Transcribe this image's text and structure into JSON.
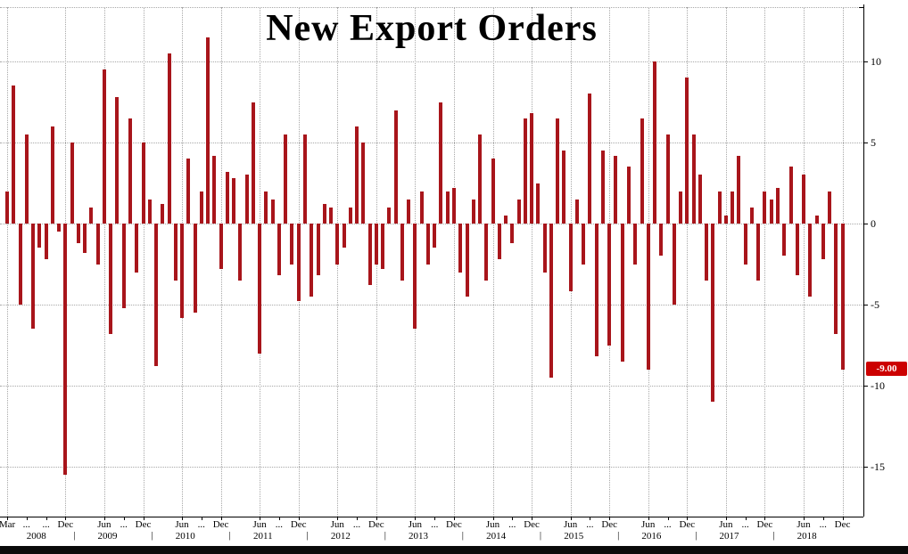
{
  "colors": {
    "bar": "#a8151b",
    "grid": "#a8a8a8",
    "axis": "#000000",
    "badge_bg": "#cc0000",
    "badge_text": "#ffffff",
    "background": "#ffffff",
    "bottom_strip": "#0a0a0a"
  },
  "chart_data": {
    "type": "bar",
    "title": "New Export Orders",
    "xlabel": "",
    "ylabel": "",
    "frequency": "monthly",
    "x_start": "2008-03",
    "x_end": "2018-12",
    "ylim": [
      -17,
      13
    ],
    "yticks": [
      10,
      5,
      0,
      -5,
      -10,
      -15
    ],
    "grid": "dotted",
    "legend": "none",
    "last_value_label": "-9.00",
    "last_value": -9.0,
    "categories": [
      "2008-03",
      "2008-04",
      "2008-05",
      "2008-06",
      "2008-07",
      "2008-08",
      "2008-09",
      "2008-10",
      "2008-11",
      "2008-12",
      "2009-01",
      "2009-02",
      "2009-03",
      "2009-04",
      "2009-05",
      "2009-06",
      "2009-07",
      "2009-08",
      "2009-09",
      "2009-10",
      "2009-11",
      "2009-12",
      "2010-01",
      "2010-02",
      "2010-03",
      "2010-04",
      "2010-05",
      "2010-06",
      "2010-07",
      "2010-08",
      "2010-09",
      "2010-10",
      "2010-11",
      "2010-12",
      "2011-01",
      "2011-02",
      "2011-03",
      "2011-04",
      "2011-05",
      "2011-06",
      "2011-07",
      "2011-08",
      "2011-09",
      "2011-10",
      "2011-11",
      "2011-12",
      "2012-01",
      "2012-02",
      "2012-03",
      "2012-04",
      "2012-05",
      "2012-06",
      "2012-07",
      "2012-08",
      "2012-09",
      "2012-10",
      "2012-11",
      "2012-12",
      "2013-01",
      "2013-02",
      "2013-03",
      "2013-04",
      "2013-05",
      "2013-06",
      "2013-07",
      "2013-08",
      "2013-09",
      "2013-10",
      "2013-11",
      "2013-12",
      "2014-01",
      "2014-02",
      "2014-03",
      "2014-04",
      "2014-05",
      "2014-06",
      "2014-07",
      "2014-08",
      "2014-09",
      "2014-10",
      "2014-11",
      "2014-12",
      "2015-01",
      "2015-02",
      "2015-03",
      "2015-04",
      "2015-05",
      "2015-06",
      "2015-07",
      "2015-08",
      "2015-09",
      "2015-10",
      "2015-11",
      "2015-12",
      "2016-01",
      "2016-02",
      "2016-03",
      "2016-04",
      "2016-05",
      "2016-06",
      "2016-07",
      "2016-08",
      "2016-09",
      "2016-10",
      "2016-11",
      "2016-12",
      "2017-01",
      "2017-02",
      "2017-03",
      "2017-04",
      "2017-05",
      "2017-06",
      "2017-07",
      "2017-08",
      "2017-09",
      "2017-10",
      "2017-11",
      "2017-12",
      "2018-01",
      "2018-02",
      "2018-03",
      "2018-04",
      "2018-05",
      "2018-06",
      "2018-07",
      "2018-08",
      "2018-09",
      "2018-10",
      "2018-11",
      "2018-12"
    ],
    "values": [
      2.0,
      8.5,
      -5.0,
      5.5,
      -6.5,
      -1.5,
      -2.2,
      6.0,
      -0.5,
      -15.5,
      5.0,
      -1.2,
      -1.8,
      1.0,
      -2.5,
      9.5,
      -6.8,
      7.8,
      -5.2,
      6.5,
      -3.0,
      5.0,
      1.5,
      -8.8,
      1.2,
      10.5,
      -3.5,
      -5.8,
      4.0,
      -5.5,
      2.0,
      11.5,
      4.2,
      -2.8,
      3.2,
      2.8,
      -3.5,
      3.0,
      7.5,
      -8.0,
      2.0,
      1.5,
      -3.2,
      5.5,
      -2.5,
      -4.8,
      5.5,
      -4.5,
      -3.2,
      1.2,
      1.0,
      -2.5,
      -1.5,
      1.0,
      6.0,
      5.0,
      -3.8,
      -2.5,
      -2.8,
      1.0,
      7.0,
      -3.5,
      1.5,
      -6.5,
      2.0,
      -2.5,
      -1.5,
      7.5,
      2.0,
      2.2,
      -3.0,
      -4.5,
      1.5,
      5.5,
      -3.5,
      4.0,
      -2.2,
      0.5,
      -1.2,
      1.5,
      6.5,
      6.8,
      2.5,
      -3.0,
      -9.5,
      6.5,
      4.5,
      -4.2,
      1.5,
      -2.5,
      8.0,
      -8.2,
      4.5,
      -7.5,
      4.2,
      -8.5,
      3.5,
      -2.5,
      6.5,
      -9.0,
      10.0,
      -2.0,
      5.5,
      -5.0,
      2.0,
      9.0,
      5.5,
      3.0,
      -3.5,
      -11.0,
      2.0,
      0.5,
      2.0,
      4.2,
      -2.5,
      1.0,
      -3.5,
      2.0,
      1.5,
      2.2,
      -2.0,
      3.5,
      -3.2,
      3.0,
      -4.5,
      0.5,
      -2.2,
      2.0,
      -6.8,
      -9.0
    ],
    "x_ticks": [
      {
        "label": "Mar",
        "idx": 0
      },
      {
        "label": "...",
        "idx": 3
      },
      {
        "label": "...",
        "idx": 6
      },
      {
        "label": "Dec",
        "idx": 9
      },
      {
        "label": "Jun",
        "idx": 15
      },
      {
        "label": "...",
        "idx": 18
      },
      {
        "label": "Dec",
        "idx": 21
      },
      {
        "label": "Jun",
        "idx": 27
      },
      {
        "label": "...",
        "idx": 30
      },
      {
        "label": "Dec",
        "idx": 33
      },
      {
        "label": "Jun",
        "idx": 39
      },
      {
        "label": "...",
        "idx": 42
      },
      {
        "label": "Dec",
        "idx": 45
      },
      {
        "label": "Jun",
        "idx": 51
      },
      {
        "label": "...",
        "idx": 54
      },
      {
        "label": "Dec",
        "idx": 57
      },
      {
        "label": "Jun",
        "idx": 63
      },
      {
        "label": "...",
        "idx": 66
      },
      {
        "label": "Dec",
        "idx": 69
      },
      {
        "label": "Jun",
        "idx": 75
      },
      {
        "label": "...",
        "idx": 78
      },
      {
        "label": "Dec",
        "idx": 81
      },
      {
        "label": "Jun",
        "idx": 87
      },
      {
        "label": "...",
        "idx": 90
      },
      {
        "label": "Dec",
        "idx": 93
      },
      {
        "label": "Jun",
        "idx": 99
      },
      {
        "label": "...",
        "idx": 102
      },
      {
        "label": "Dec",
        "idx": 105
      },
      {
        "label": "Jun",
        "idx": 111
      },
      {
        "label": "...",
        "idx": 114
      },
      {
        "label": "Dec",
        "idx": 117
      },
      {
        "label": "Jun",
        "idx": 123
      },
      {
        "label": "...",
        "idx": 126
      },
      {
        "label": "Dec",
        "idx": 129
      }
    ],
    "year_labels": [
      {
        "label": "2008",
        "idx": 4.5
      },
      {
        "label": "2009",
        "idx": 15.5
      },
      {
        "label": "2010",
        "idx": 27.5
      },
      {
        "label": "2011",
        "idx": 39.5
      },
      {
        "label": "2012",
        "idx": 51.5
      },
      {
        "label": "2013",
        "idx": 63.5
      },
      {
        "label": "2014",
        "idx": 75.5
      },
      {
        "label": "2015",
        "idx": 87.5
      },
      {
        "label": "2016",
        "idx": 99.5
      },
      {
        "label": "2017",
        "idx": 111.5
      },
      {
        "label": "2018",
        "idx": 123.5
      }
    ],
    "year_separators_idx": [
      10.5,
      22.5,
      34.5,
      46.5,
      58.5,
      70.5,
      82.5,
      94.5,
      106.5,
      118.5
    ],
    "vgrid_idx": [
      0,
      9,
      15,
      21,
      27,
      33,
      39,
      45,
      51,
      57,
      63,
      69,
      75,
      81,
      87,
      93,
      99,
      105,
      111,
      117,
      123,
      129
    ]
  }
}
